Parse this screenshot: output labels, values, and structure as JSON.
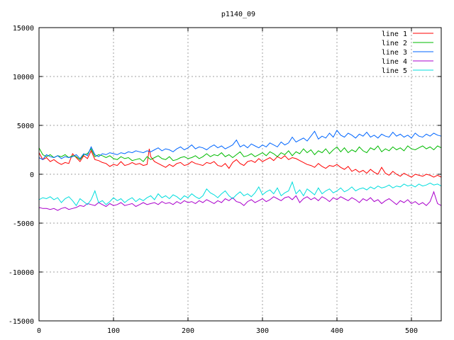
{
  "chart_data": {
    "type": "line",
    "title": "p1140_09",
    "xlabel": "",
    "ylabel": "",
    "xlim": [
      0,
      540
    ],
    "ylim": [
      -15000,
      15000
    ],
    "xticks": [
      0,
      100,
      200,
      300,
      400,
      500
    ],
    "yticks": [
      -15000,
      -10000,
      -5000,
      0,
      5000,
      10000,
      15000
    ],
    "grid": true,
    "legend_position": "top-right",
    "series": [
      {
        "name": "line 1",
        "color": "#ff0000",
        "x": [
          0,
          5,
          10,
          15,
          20,
          25,
          30,
          35,
          40,
          45,
          50,
          55,
          60,
          65,
          70,
          75,
          80,
          85,
          90,
          95,
          100,
          105,
          110,
          115,
          120,
          125,
          130,
          135,
          140,
          145,
          148,
          150,
          155,
          160,
          165,
          170,
          175,
          180,
          185,
          190,
          195,
          200,
          205,
          210,
          215,
          220,
          225,
          230,
          235,
          240,
          245,
          250,
          255,
          260,
          265,
          270,
          275,
          280,
          285,
          290,
          295,
          300,
          305,
          310,
          315,
          320,
          325,
          330,
          335,
          340,
          345,
          350,
          355,
          360,
          365,
          370,
          375,
          380,
          385,
          390,
          395,
          400,
          405,
          410,
          415,
          420,
          425,
          430,
          435,
          440,
          445,
          450,
          455,
          460,
          465,
          470,
          475,
          480,
          485,
          490,
          495,
          500,
          505,
          510,
          515,
          520,
          525,
          530,
          535,
          540
        ],
        "y": [
          2200,
          1500,
          1700,
          1300,
          1500,
          1200,
          1000,
          1200,
          1100,
          2100,
          1700,
          1300,
          1900,
          1600,
          2400,
          1500,
          1400,
          1200,
          1100,
          800,
          1000,
          900,
          1300,
          900,
          1000,
          1200,
          1000,
          1100,
          900,
          1000,
          2600,
          1800,
          1300,
          1100,
          900,
          700,
          1000,
          800,
          1100,
          1200,
          900,
          1000,
          1300,
          1100,
          1000,
          900,
          1200,
          1100,
          1300,
          900,
          800,
          1100,
          600,
          1200,
          1500,
          1100,
          900,
          1300,
          1400,
          1200,
          1600,
          1300,
          1500,
          1700,
          1400,
          1800,
          1600,
          1900,
          1500,
          1700,
          1600,
          1400,
          1200,
          1000,
          900,
          700,
          1100,
          800,
          600,
          900,
          800,
          1000,
          700,
          500,
          800,
          300,
          500,
          200,
          400,
          100,
          500,
          200,
          0,
          700,
          100,
          -100,
          300,
          0,
          -200,
          100,
          -100,
          -300,
          0,
          -100,
          -200,
          0,
          -100,
          -300,
          -100,
          -300
        ]
      },
      {
        "name": "line 2",
        "color": "#00bb00",
        "x": [
          0,
          5,
          10,
          15,
          20,
          25,
          30,
          35,
          40,
          45,
          50,
          55,
          60,
          65,
          70,
          75,
          80,
          85,
          90,
          95,
          100,
          105,
          110,
          115,
          120,
          125,
          130,
          135,
          140,
          145,
          150,
          155,
          160,
          165,
          170,
          175,
          180,
          185,
          190,
          195,
          200,
          205,
          210,
          215,
          220,
          225,
          230,
          235,
          240,
          245,
          250,
          255,
          260,
          265,
          270,
          275,
          280,
          285,
          290,
          295,
          300,
          305,
          310,
          315,
          320,
          325,
          330,
          335,
          340,
          345,
          350,
          355,
          360,
          365,
          370,
          375,
          380,
          385,
          390,
          395,
          400,
          405,
          410,
          415,
          420,
          425,
          430,
          435,
          440,
          445,
          450,
          455,
          460,
          465,
          470,
          475,
          480,
          485,
          490,
          495,
          500,
          505,
          510,
          515,
          520,
          525,
          530,
          535,
          540
        ],
        "y": [
          2700,
          2000,
          1800,
          2000,
          1700,
          1900,
          1800,
          2000,
          1700,
          1900,
          1800,
          1500,
          2000,
          2100,
          2600,
          1800,
          2000,
          1900,
          1700,
          1900,
          1600,
          1500,
          1800,
          1600,
          1700,
          1400,
          1500,
          1600,
          1300,
          1800,
          1500,
          1700,
          1900,
          1600,
          1500,
          1800,
          1400,
          1500,
          1700,
          1800,
          1600,
          1700,
          1900,
          1600,
          1800,
          2100,
          1800,
          2000,
          1900,
          2200,
          1800,
          2000,
          1700,
          2000,
          2300,
          1800,
          1900,
          2100,
          1800,
          2000,
          2200,
          1900,
          2300,
          2100,
          1800,
          2200,
          2000,
          2400,
          1900,
          2300,
          2100,
          2600,
          2200,
          2500,
          2000,
          2400,
          2200,
          2600,
          2100,
          2500,
          2800,
          2300,
          2700,
          2200,
          2500,
          2300,
          2800,
          2400,
          2200,
          2700,
          2500,
          2900,
          2300,
          2600,
          2400,
          2800,
          2500,
          2700,
          2400,
          2900,
          2600,
          2500,
          2700,
          2900,
          2600,
          2800,
          2500,
          2900,
          2700
        ]
      },
      {
        "name": "line 3",
        "color": "#0066ff",
        "x": [
          0,
          5,
          10,
          15,
          20,
          25,
          30,
          35,
          40,
          45,
          50,
          55,
          60,
          65,
          70,
          75,
          80,
          85,
          90,
          95,
          100,
          105,
          110,
          115,
          120,
          125,
          130,
          135,
          140,
          145,
          150,
          155,
          160,
          165,
          170,
          175,
          180,
          185,
          190,
          195,
          200,
          205,
          210,
          215,
          220,
          225,
          230,
          235,
          240,
          245,
          250,
          255,
          260,
          265,
          270,
          275,
          280,
          285,
          290,
          295,
          300,
          305,
          310,
          315,
          320,
          325,
          330,
          335,
          340,
          345,
          350,
          355,
          360,
          365,
          370,
          375,
          380,
          385,
          390,
          395,
          400,
          405,
          410,
          415,
          420,
          425,
          430,
          435,
          440,
          445,
          450,
          455,
          460,
          465,
          470,
          475,
          480,
          485,
          490,
          495,
          500,
          505,
          510,
          515,
          520,
          525,
          530,
          535,
          540
        ],
        "y": [
          1700,
          1500,
          2000,
          1800,
          1700,
          1900,
          1600,
          1800,
          1700,
          1800,
          2000,
          1600,
          2100,
          1900,
          2800,
          2000,
          1800,
          2100,
          2000,
          2200,
          2100,
          2000,
          2200,
          2100,
          2300,
          2200,
          2400,
          2300,
          2200,
          2400,
          2300,
          2500,
          2700,
          2400,
          2600,
          2500,
          2300,
          2600,
          2800,
          2500,
          2700,
          3000,
          2600,
          2800,
          2700,
          2500,
          2800,
          3000,
          2700,
          2900,
          2600,
          2800,
          3000,
          3500,
          2800,
          3000,
          2700,
          3100,
          2900,
          2700,
          3000,
          2800,
          3200,
          3000,
          2800,
          3300,
          3000,
          3200,
          3800,
          3300,
          3500,
          3700,
          3400,
          3900,
          4400,
          3600,
          3900,
          3700,
          4200,
          3800,
          4500,
          4000,
          3800,
          4200,
          4000,
          3700,
          4100,
          3900,
          4300,
          3800,
          4000,
          3700,
          4100,
          3900,
          3800,
          4300,
          3900,
          4100,
          3800,
          4000,
          3700,
          4200,
          3900,
          3800,
          4100,
          3900,
          4200,
          4000,
          3900
        ]
      },
      {
        "name": "line 4",
        "color": "#aa00cc",
        "x": [
          0,
          5,
          10,
          15,
          20,
          25,
          30,
          35,
          40,
          45,
          50,
          55,
          60,
          65,
          70,
          75,
          80,
          85,
          90,
          95,
          100,
          105,
          110,
          115,
          120,
          125,
          130,
          135,
          140,
          145,
          150,
          155,
          160,
          165,
          170,
          175,
          180,
          185,
          190,
          195,
          200,
          205,
          210,
          215,
          220,
          225,
          230,
          235,
          240,
          245,
          250,
          255,
          260,
          265,
          270,
          275,
          280,
          285,
          290,
          295,
          300,
          305,
          310,
          315,
          320,
          325,
          330,
          335,
          340,
          345,
          350,
          355,
          360,
          365,
          370,
          375,
          380,
          385,
          390,
          395,
          400,
          405,
          410,
          415,
          420,
          425,
          430,
          435,
          440,
          445,
          450,
          455,
          460,
          465,
          470,
          475,
          480,
          485,
          490,
          495,
          500,
          505,
          510,
          515,
          520,
          525,
          530,
          535,
          540
        ],
        "y": [
          -3400,
          -3500,
          -3500,
          -3600,
          -3500,
          -3700,
          -3500,
          -3400,
          -3600,
          -3500,
          -3400,
          -3200,
          -3300,
          -3000,
          -3100,
          -3200,
          -2900,
          -3100,
          -3300,
          -3000,
          -3200,
          -3100,
          -2900,
          -3200,
          -3100,
          -3000,
          -3300,
          -3100,
          -2900,
          -3100,
          -3000,
          -2900,
          -3100,
          -2800,
          -3000,
          -2900,
          -3100,
          -2800,
          -3000,
          -2700,
          -2900,
          -2800,
          -3000,
          -2700,
          -2900,
          -2600,
          -2800,
          -3000,
          -2700,
          -2900,
          -2500,
          -2700,
          -2400,
          -2800,
          -2900,
          -3200,
          -2800,
          -2600,
          -2900,
          -2700,
          -2500,
          -2800,
          -2600,
          -2300,
          -2500,
          -2700,
          -2400,
          -2300,
          -2600,
          -2200,
          -2900,
          -2500,
          -2300,
          -2600,
          -2400,
          -2700,
          -2300,
          -2500,
          -2800,
          -2400,
          -2600,
          -2300,
          -2500,
          -2700,
          -2400,
          -2600,
          -2900,
          -2500,
          -2700,
          -2400,
          -2800,
          -2600,
          -3000,
          -2700,
          -2500,
          -2800,
          -3100,
          -2700,
          -2900,
          -2600,
          -3000,
          -2800,
          -3100,
          -2900,
          -3200,
          -2800,
          -1800,
          -3000,
          -3200
        ]
      },
      {
        "name": "line 5",
        "color": "#00dddd",
        "x": [
          0,
          5,
          10,
          15,
          20,
          25,
          30,
          35,
          40,
          45,
          50,
          55,
          60,
          65,
          70,
          75,
          80,
          85,
          90,
          95,
          100,
          105,
          110,
          115,
          120,
          125,
          130,
          135,
          140,
          145,
          150,
          155,
          160,
          165,
          170,
          175,
          180,
          185,
          190,
          195,
          200,
          205,
          210,
          215,
          220,
          225,
          230,
          235,
          240,
          245,
          250,
          255,
          260,
          265,
          270,
          275,
          280,
          285,
          290,
          295,
          300,
          305,
          310,
          315,
          320,
          325,
          330,
          335,
          340,
          345,
          350,
          355,
          360,
          365,
          370,
          375,
          380,
          385,
          390,
          395,
          400,
          405,
          410,
          415,
          420,
          425,
          430,
          435,
          440,
          445,
          450,
          455,
          460,
          465,
          470,
          475,
          480,
          485,
          490,
          495,
          500,
          505,
          510,
          515,
          520,
          525,
          530,
          535,
          540
        ],
        "y": [
          -2600,
          -2400,
          -2500,
          -2300,
          -2600,
          -2400,
          -2900,
          -2500,
          -2300,
          -2700,
          -3200,
          -2500,
          -2800,
          -3100,
          -2600,
          -1700,
          -2900,
          -2700,
          -3100,
          -2800,
          -2400,
          -2700,
          -2500,
          -2900,
          -2600,
          -2400,
          -2800,
          -2500,
          -2700,
          -2400,
          -2200,
          -2600,
          -2000,
          -2400,
          -2200,
          -2500,
          -2100,
          -2300,
          -2600,
          -2200,
          -2400,
          -2000,
          -2300,
          -2500,
          -2200,
          -1500,
          -1900,
          -2100,
          -2400,
          -2000,
          -1700,
          -2200,
          -2500,
          -2100,
          -1800,
          -2200,
          -2000,
          -2300,
          -1900,
          -1300,
          -2100,
          -1800,
          -1600,
          -2000,
          -1400,
          -2200,
          -1900,
          -1700,
          -800,
          -2000,
          -1600,
          -2200,
          -1500,
          -1800,
          -2100,
          -1400,
          -2000,
          -1700,
          -1500,
          -1900,
          -1700,
          -1400,
          -1800,
          -1600,
          -1300,
          -1700,
          -1500,
          -1400,
          -1600,
          -1300,
          -1500,
          -1200,
          -1400,
          -1300,
          -1100,
          -1400,
          -1200,
          -1300,
          -1000,
          -1200,
          -1100,
          -1300,
          -1000,
          -1200,
          -1100,
          -900,
          -1100,
          -1000,
          -1200
        ]
      }
    ]
  }
}
